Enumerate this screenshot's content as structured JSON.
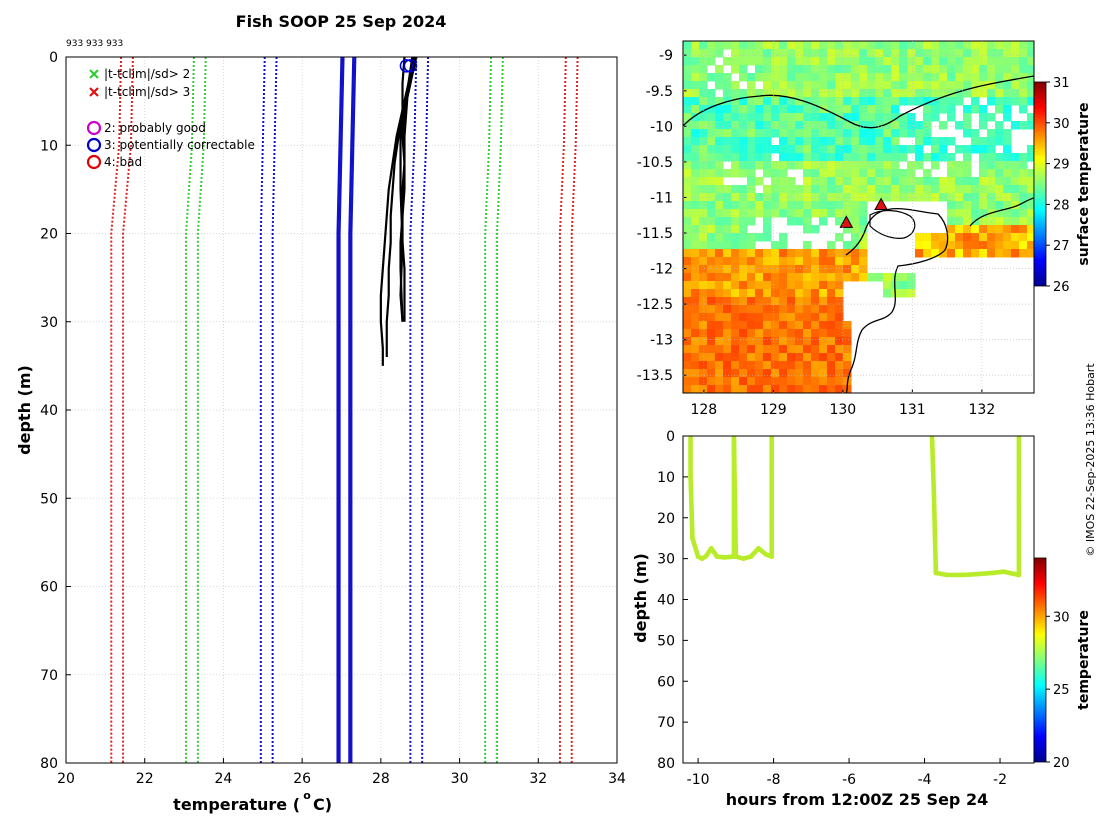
{
  "chart_data": [
    {
      "type": "line",
      "title": "Fish SOOP 25 Sep 2024",
      "subtitle": "933 933 933",
      "xlabel": "temperature (",
      "xlabel_sup": "o",
      "xlabel_suffix": " C)",
      "ylabel": "depth (m)",
      "xlim": [
        20,
        34
      ],
      "ylim": [
        0,
        80
      ],
      "xticks": [
        20,
        22,
        24,
        26,
        28,
        30,
        32,
        34
      ],
      "yticks": [
        0,
        10,
        20,
        30,
        40,
        50,
        60,
        70,
        80
      ],
      "grid": true,
      "legend": {
        "position": "top-left",
        "entries": [
          {
            "marker": "x",
            "color": "#33cc33",
            "label": "|t-tclim|/sd> 2"
          },
          {
            "marker": "x",
            "color": "#e01010",
            "label": "|t-tclim|/sd> 3"
          },
          {
            "marker": "o",
            "color": "#cc00cc",
            "label": "2: probably good"
          },
          {
            "marker": "o",
            "color": "#0000cc",
            "label": "3: potentially correctable"
          },
          {
            "marker": "o",
            "color": "#e00000",
            "label": "4: bad"
          }
        ]
      },
      "climatology_envelopes": [
        {
          "name": "clim-3sd",
          "color": "#dd2222",
          "style": "dotted",
          "depth": [
            0,
            10,
            20,
            30,
            40,
            50,
            60,
            70,
            80
          ],
          "low": [
            21.55,
            21.5,
            21.3,
            21.3,
            21.3,
            21.3,
            21.3,
            21.3,
            21.3
          ],
          "high": [
            32.85,
            32.8,
            32.7,
            32.7,
            32.7,
            32.7,
            32.7,
            32.7,
            32.7
          ]
        },
        {
          "name": "clim-2sd",
          "color": "#33cc33",
          "style": "dotted",
          "depth": [
            0,
            10,
            20,
            30,
            40,
            50,
            60,
            70,
            80
          ],
          "low": [
            23.4,
            23.35,
            23.2,
            23.2,
            23.2,
            23.2,
            23.2,
            23.2,
            23.2
          ],
          "high": [
            30.95,
            30.9,
            30.8,
            30.8,
            30.8,
            30.8,
            30.8,
            30.8,
            30.8
          ]
        },
        {
          "name": "clim-1sd",
          "color": "#1111cc",
          "style": "dotted",
          "depth": [
            0,
            10,
            20,
            30,
            40,
            50,
            60,
            70,
            80
          ],
          "low": [
            25.2,
            25.15,
            25.1,
            25.1,
            25.1,
            25.1,
            25.1,
            25.1,
            25.1
          ],
          "high": [
            29.05,
            29.0,
            28.9,
            28.9,
            28.9,
            28.9,
            28.9,
            28.9,
            28.9
          ]
        },
        {
          "name": "clim-mean",
          "color": "#1111cc",
          "style": "solid",
          "depth": [
            0,
            10,
            20,
            30,
            40,
            50,
            60,
            70,
            80
          ],
          "low": [
            27.15,
            27.1,
            27.05,
            27.05,
            27.05,
            27.05,
            27.05,
            27.05,
            27.05
          ],
          "high": [
            27.2,
            27.15,
            27.1,
            27.1,
            27.1,
            27.1,
            27.1,
            27.1,
            27.1
          ]
        }
      ],
      "series": [
        {
          "name": "profile-1",
          "color": "#000000",
          "temperature": [
            28.85,
            28.7,
            28.55,
            28.4,
            28.3,
            28.2,
            28.15,
            28.1,
            28.05,
            28.0,
            28.0,
            28.05,
            28.05
          ],
          "depth": [
            0,
            3,
            6,
            9,
            12,
            15,
            18,
            21,
            24,
            27,
            30,
            33,
            35
          ]
        },
        {
          "name": "profile-2",
          "color": "#000000",
          "temperature": [
            28.85,
            28.75,
            28.6,
            28.45,
            28.35,
            28.3,
            28.25,
            28.25,
            28.2,
            28.2,
            28.15,
            28.15
          ],
          "depth": [
            0,
            3,
            6,
            9,
            12,
            15,
            18,
            21,
            24,
            27,
            30,
            34
          ]
        },
        {
          "name": "profile-3",
          "color": "#000000",
          "temperature": [
            28.8,
            28.7,
            28.65,
            28.6,
            28.6,
            28.55,
            28.55,
            28.5,
            28.5,
            28.55
          ],
          "depth": [
            0,
            3,
            6,
            9,
            12,
            15,
            18,
            21,
            24,
            30
          ]
        },
        {
          "name": "profile-4",
          "color": "#000000",
          "temperature": [
            28.9,
            28.75,
            28.6,
            28.55,
            28.6,
            28.6,
            28.55,
            28.55,
            28.6,
            28.6
          ],
          "depth": [
            0,
            3,
            6,
            9,
            12,
            15,
            18,
            21,
            24,
            30
          ]
        },
        {
          "name": "profile-5",
          "color": "#000000",
          "temperature": [
            28.6,
            28.55,
            28.55,
            28.5,
            28.5,
            28.55,
            28.5,
            28.55
          ],
          "depth": [
            0,
            3,
            6,
            9,
            15,
            21,
            27,
            30
          ]
        }
      ],
      "flagged_points": [
        {
          "flag": "3",
          "color": "#0000cc",
          "temperature": 28.75,
          "depth": 1
        },
        {
          "flag": "3",
          "color": "#0000cc",
          "temperature": 28.65,
          "depth": 1
        }
      ]
    },
    {
      "type": "heatmap",
      "ylabel_colorbar": "surface temperature",
      "xlim": [
        127.7,
        132.75
      ],
      "ylim": [
        -13.75,
        -8.8
      ],
      "xticks": [
        128,
        129,
        130,
        131,
        132
      ],
      "yticks": [
        -9,
        -9.5,
        -10,
        -10.5,
        -11,
        -11.5,
        -12,
        -12.5,
        -13,
        -13.5
      ],
      "colorbar": {
        "min": 26,
        "max": 31,
        "ticks": [
          26,
          27,
          28,
          29,
          30,
          31
        ]
      },
      "stations": [
        {
          "lon": 130.05,
          "lat": -11.35,
          "color": "#e01010"
        },
        {
          "lon": 130.55,
          "lat": -11.1,
          "color": "#e01010"
        }
      ]
    },
    {
      "type": "scatter",
      "xlabel": "hours from 12:00Z 25 Sep 24",
      "ylabel": "depth (m)",
      "ylabel_colorbar": "temperature",
      "xlim": [
        -10.4,
        -1.1
      ],
      "ylim": [
        0,
        80
      ],
      "xticks": [
        -10,
        -8,
        -6,
        -4,
        -2
      ],
      "yticks": [
        0,
        10,
        20,
        30,
        40,
        50,
        60,
        70,
        80
      ],
      "colorbar": {
        "min": 20,
        "max": 34,
        "ticks": [
          20,
          25,
          30
        ]
      },
      "point_color": "#b8ec2a",
      "traces": [
        {
          "hours": [
            -10.2,
            -10.2,
            -10.15,
            -10.0,
            -9.9,
            -9.8,
            -9.65,
            -9.5,
            -9.3,
            -9.05,
            -9.05,
            -9.05
          ],
          "depth": [
            0.5,
            10,
            25,
            29.5,
            30,
            29.5,
            27.5,
            29.5,
            29.7,
            29.5,
            10,
            0.5
          ]
        },
        {
          "hours": [
            -9.05,
            -9.0,
            -8.8,
            -8.6,
            -8.4,
            -8.2,
            -8.05,
            -8.05,
            -8.05
          ],
          "depth": [
            0.5,
            29.5,
            30,
            29.5,
            27.5,
            29,
            29.5,
            10,
            0.5
          ]
        },
        {
          "hours": [
            -3.8,
            -3.75,
            -3.7,
            -3.4,
            -3.0,
            -2.6,
            -2.2,
            -1.9,
            -1.6,
            -1.5,
            -1.5,
            -1.5
          ],
          "depth": [
            0.5,
            15,
            33.5,
            34,
            34,
            33.8,
            33.5,
            33.2,
            33.8,
            34,
            15,
            0.5
          ]
        }
      ]
    }
  ],
  "footer": {
    "credit": "© IMOS 22-Sep-2025 13:36 Hobart"
  }
}
